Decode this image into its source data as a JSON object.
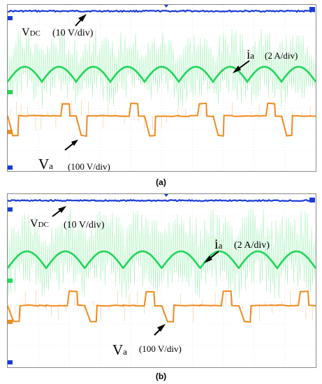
{
  "panels": [
    {
      "caption": "(a)",
      "labels": {
        "vdc_main": "V",
        "vdc_sub": "DC",
        "vdc_scale": "(10 V/div)",
        "ia_main": "i",
        "ia_sub": "a",
        "ia_scale": "(2 A/div)",
        "va_main": "V",
        "va_sub": "a",
        "va_scale": "(100 V/div)"
      },
      "markers": {
        "ch1": "1",
        "ch2": "2",
        "ch3": "3"
      }
    },
    {
      "caption": "(b)",
      "labels": {
        "vdc_main": "V",
        "vdc_sub": "DC",
        "vdc_scale": "(10 V/div)",
        "ia_main": "i",
        "ia_sub": "a",
        "ia_scale": "(2 A/div)",
        "va_main": "V",
        "va_sub": "a",
        "va_scale": "(100 V/div)"
      },
      "markers": {
        "ch1": "1",
        "ch2": "2",
        "ch3": "3"
      }
    }
  ],
  "chart_data": [
    {
      "type": "line",
      "grid": true,
      "x_divisions": 10,
      "y_divisions": 8,
      "series": [
        {
          "name": "VDC",
          "scale": "10 V/div",
          "color": "#1a3bd6",
          "shape": "dc",
          "level_div": 7.7
        },
        {
          "name": "ia",
          "scale": "2 A/div",
          "color": "#22d65a",
          "shape": "rectified-sine",
          "cycles": 9,
          "center_div": 4.6,
          "amplitude_div": 0.6,
          "ripple_div": 1.7
        },
        {
          "name": "Va",
          "scale": "100 V/div",
          "color": "#f08a1e",
          "shape": "pwm",
          "cycles": 9,
          "levels_div": [
            3.25,
            2.65,
            1.7
          ]
        }
      ]
    },
    {
      "type": "line",
      "grid": true,
      "x_divisions": 10,
      "y_divisions": 8,
      "series": [
        {
          "name": "VDC",
          "scale": "10 V/div",
          "color": "#1a3bd6",
          "shape": "dc",
          "level_div": 7.7
        },
        {
          "name": "ia",
          "scale": "2 A/div",
          "color": "#22d65a",
          "shape": "rectified-sine",
          "cycles": 8,
          "center_div": 4.9,
          "amplitude_div": 0.65,
          "ripple_div": 1.9
        },
        {
          "name": "Va",
          "scale": "100 V/div",
          "color": "#f08a1e",
          "shape": "pwm",
          "cycles": 8,
          "levels_div": [
            3.5,
            2.85,
            2.1
          ]
        }
      ]
    }
  ]
}
